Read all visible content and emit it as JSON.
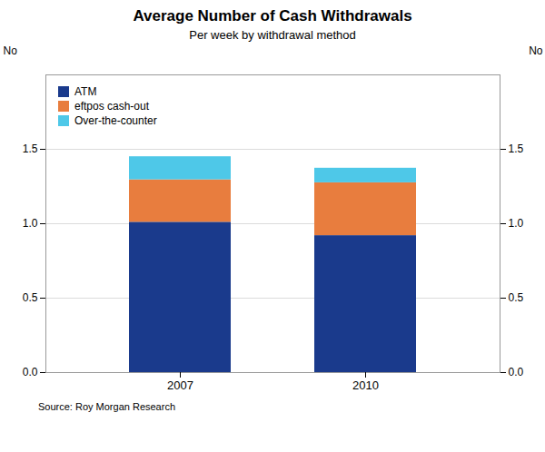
{
  "chart_data": {
    "type": "bar",
    "stacked": true,
    "title": "Average Number of Cash Withdrawals",
    "subtitle": "Per week by withdrawal method",
    "source": "Source: Roy Morgan Research",
    "ylabel": "No",
    "y2label": "No",
    "categories": [
      "2007",
      "2010"
    ],
    "series": [
      {
        "name": "ATM",
        "color": "#1a3a8c",
        "values": [
          1.01,
          0.92
        ]
      },
      {
        "name": "eftpos cash-out",
        "color": "#e87d3e",
        "values": [
          0.285,
          0.355
        ]
      },
      {
        "name": "Over-the-counter",
        "color": "#4ec8e8",
        "values": [
          0.155,
          0.098
        ]
      }
    ],
    "ylim": [
      0,
      2.0
    ],
    "yticks": [
      {
        "value": 0,
        "label": "0.0"
      },
      {
        "value": 0.5,
        "label": "0.5"
      },
      {
        "value": 1,
        "label": "1.0"
      },
      {
        "value": 1.5,
        "label": "1.5"
      }
    ],
    "y2lim": [
      0,
      2.0
    ],
    "y2ticks": [
      {
        "value": 0,
        "label": "0.0"
      },
      {
        "value": 0.5,
        "label": "0.5"
      },
      {
        "value": 1,
        "label": "1.0"
      },
      {
        "value": 1.5,
        "label": "1.5"
      }
    ],
    "grid": true,
    "legend": "upper left"
  }
}
